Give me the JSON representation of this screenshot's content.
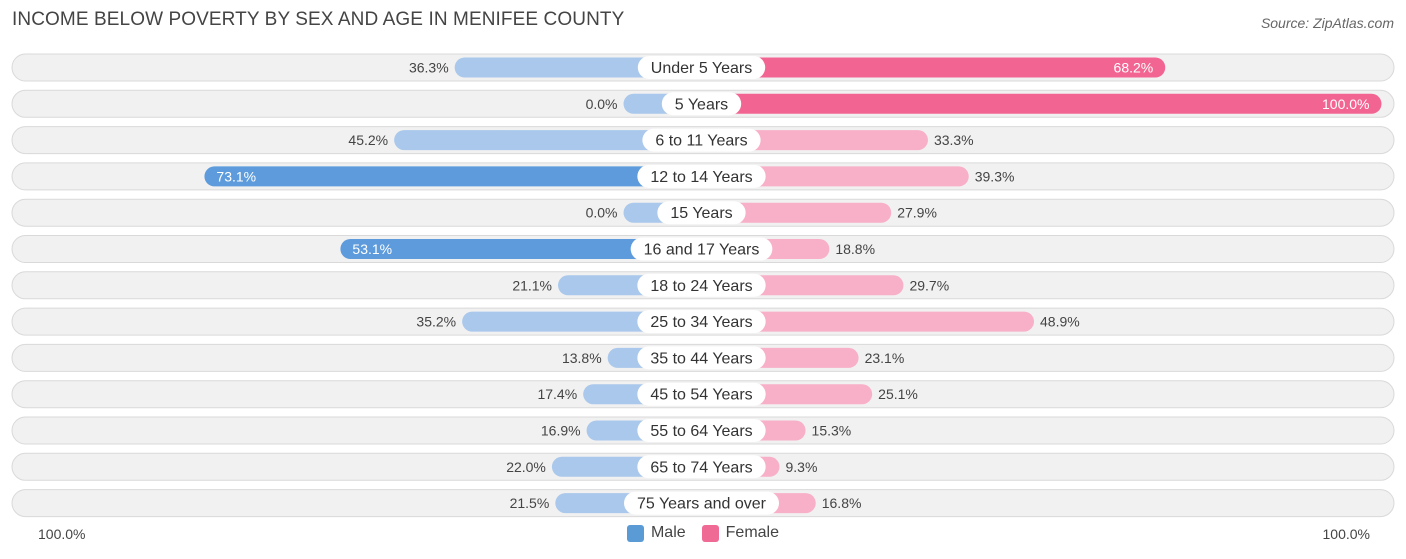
{
  "header": {
    "title": "INCOME BELOW POVERTY BY SEX AND AGE IN MENIFEE COUNTY",
    "source": "Source: ZipAtlas.com"
  },
  "axis": {
    "left_label": "100.0%",
    "right_label": "100.0%"
  },
  "legend": {
    "male_label": "Male",
    "female_label": "Female",
    "male_color": "#5b9bd5",
    "female_color": "#f06a96"
  },
  "colors": {
    "male_strong": "#5d9bdc",
    "male_light": "#a9c8ec",
    "female_strong": "#f26593",
    "female_light": "#f8b0c8",
    "row_bg": "#f1f1f1",
    "row_border": "#d9d9d9"
  },
  "chart_data": {
    "type": "bar",
    "orientation": "horizontal-diverging",
    "title": "INCOME BELOW POVERTY BY SEX AND AGE IN MENIFEE COUNTY",
    "xlim": [
      -100,
      100
    ],
    "unit": "%",
    "categories": [
      "Under 5 Years",
      "5 Years",
      "6 to 11 Years",
      "12 to 14 Years",
      "15 Years",
      "16 and 17 Years",
      "18 to 24 Years",
      "25 to 34 Years",
      "35 to 44 Years",
      "45 to 54 Years",
      "55 to 64 Years",
      "65 to 74 Years",
      "75 Years and over"
    ],
    "series": [
      {
        "name": "Male",
        "values": [
          36.3,
          0.0,
          45.2,
          73.1,
          0.0,
          53.1,
          21.1,
          35.2,
          13.8,
          17.4,
          16.9,
          22.0,
          21.5
        ]
      },
      {
        "name": "Female",
        "values": [
          68.2,
          100.0,
          33.3,
          39.3,
          27.9,
          18.8,
          29.7,
          48.9,
          23.1,
          25.1,
          15.3,
          9.3,
          16.8
        ]
      }
    ],
    "male_labels": [
      "36.3%",
      "0.0%",
      "45.2%",
      "73.1%",
      "0.0%",
      "53.1%",
      "21.1%",
      "35.2%",
      "13.8%",
      "17.4%",
      "16.9%",
      "22.0%",
      "21.5%"
    ],
    "female_labels": [
      "68.2%",
      "100.0%",
      "33.3%",
      "39.3%",
      "27.9%",
      "18.8%",
      "29.7%",
      "48.9%",
      "23.1%",
      "25.1%",
      "15.3%",
      "9.3%",
      "16.8%"
    ]
  }
}
